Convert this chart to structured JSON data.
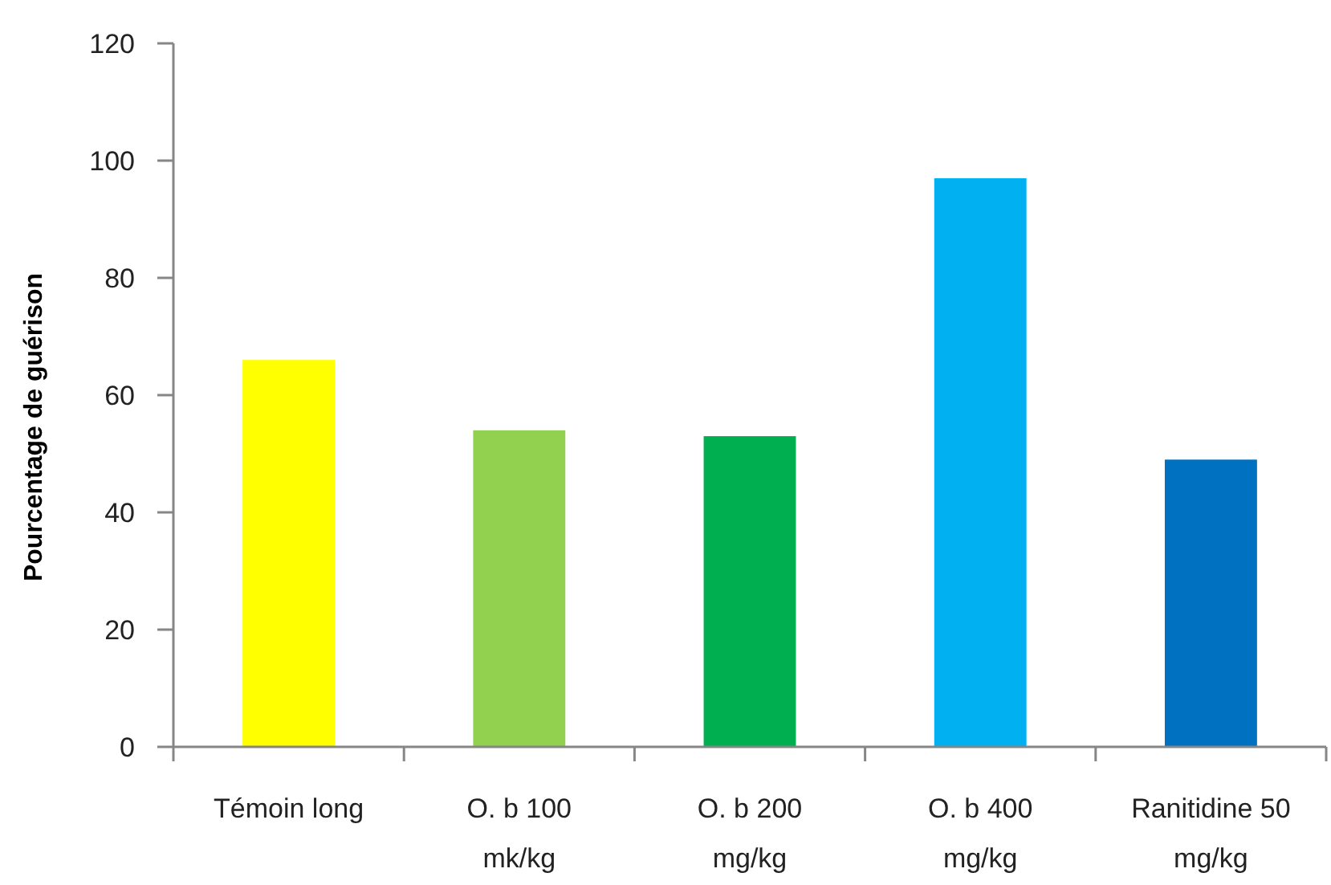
{
  "chart_data": {
    "type": "bar",
    "ylabel": "Pourcentage de guérison",
    "categories": [
      "Témoin long",
      "O. b 100 mk/kg",
      "O. b 200 mg/kg",
      "O. b 400 mg/kg",
      "Ranitidine 50 mg/kg"
    ],
    "values": [
      66,
      54,
      53,
      97,
      49
    ],
    "colors": [
      "#ffff00",
      "#92d050",
      "#00b050",
      "#00b0f0",
      "#0070c0"
    ],
    "ylim": [
      0,
      120
    ],
    "yticks": [
      0,
      20,
      40,
      60,
      80,
      100,
      120
    ],
    "grid": false
  }
}
